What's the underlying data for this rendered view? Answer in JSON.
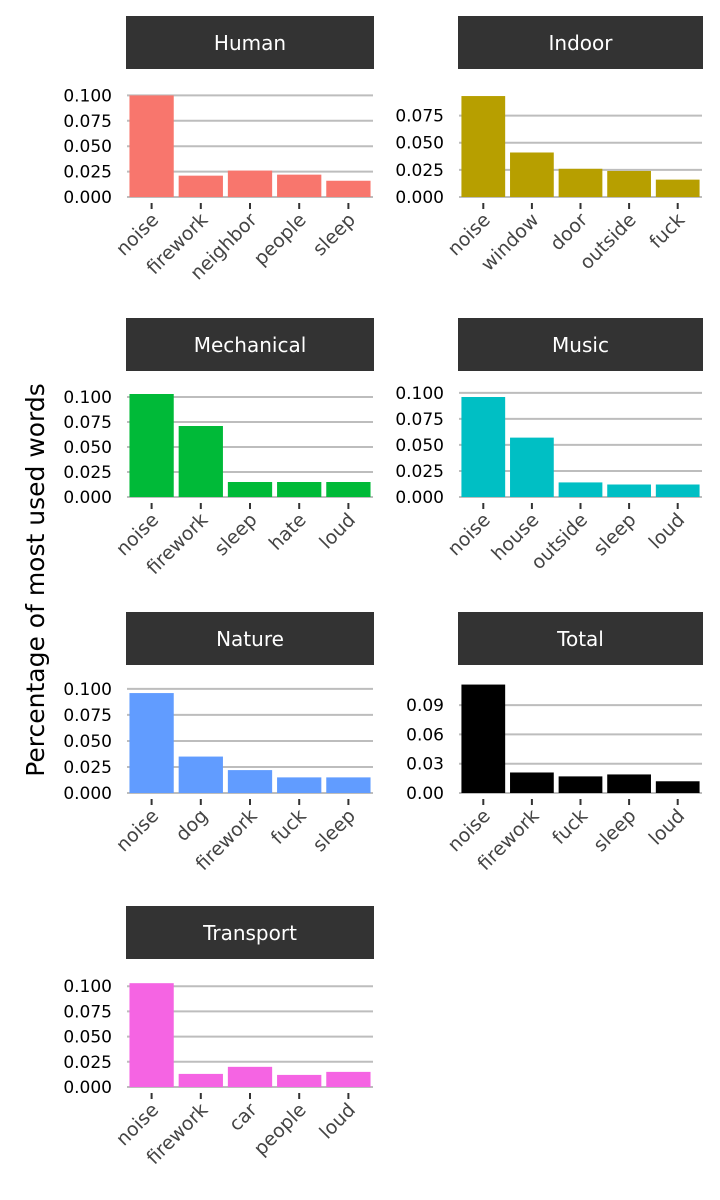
{
  "ylabel": "Percentage of most used words",
  "chart_data": [
    {
      "type": "bar",
      "title": "Human",
      "color": "#F8766D",
      "categories": [
        "noise",
        "firework",
        "neighbor",
        "people",
        "sleep"
      ],
      "values": [
        0.1,
        0.021,
        0.026,
        0.022,
        0.016
      ],
      "ylim": [
        0,
        0.125
      ],
      "yticks": [
        "0.000",
        "0.025",
        "0.050",
        "0.075",
        "0.100"
      ],
      "ytick_values": [
        0,
        0.025,
        0.05,
        0.075,
        0.1
      ]
    },
    {
      "type": "bar",
      "title": "Indoor",
      "color": "#B79F00",
      "categories": [
        "noise",
        "window",
        "door",
        "outside",
        "fuck"
      ],
      "values": [
        0.093,
        0.041,
        0.026,
        0.024,
        0.016
      ],
      "ylim": [
        0,
        0.117
      ],
      "yticks": [
        "0.000",
        "0.025",
        "0.050",
        "0.075"
      ],
      "ytick_values": [
        0,
        0.025,
        0.05,
        0.075
      ]
    },
    {
      "type": "bar",
      "title": "Mechanical",
      "color": "#00BA38",
      "categories": [
        "noise",
        "firework",
        "sleep",
        "hate",
        "loud"
      ],
      "values": [
        0.103,
        0.071,
        0.015,
        0.015,
        0.015
      ],
      "ylim": [
        0,
        0.125
      ],
      "yticks": [
        "0.000",
        "0.025",
        "0.050",
        "0.075",
        "0.100"
      ],
      "ytick_values": [
        0,
        0.025,
        0.05,
        0.075,
        0.1
      ]
    },
    {
      "type": "bar",
      "title": "Music",
      "color": "#00BFC4",
      "categories": [
        "noise",
        "house",
        "outside",
        "sleep",
        "loud"
      ],
      "values": [
        0.096,
        0.057,
        0.014,
        0.012,
        0.012
      ],
      "ylim": [
        0,
        0.12
      ],
      "yticks": [
        "0.000",
        "0.025",
        "0.050",
        "0.075",
        "0.100"
      ],
      "ytick_values": [
        0,
        0.025,
        0.05,
        0.075,
        0.1
      ]
    },
    {
      "type": "bar",
      "title": "Nature",
      "color": "#619CFF",
      "categories": [
        "noise",
        "dog",
        "firework",
        "fuck",
        "sleep"
      ],
      "values": [
        0.096,
        0.035,
        0.022,
        0.015,
        0.015
      ],
      "ylim": [
        0,
        0.122
      ],
      "yticks": [
        "0.000",
        "0.025",
        "0.050",
        "0.075",
        "0.100"
      ],
      "ytick_values": [
        0,
        0.025,
        0.05,
        0.075,
        0.1
      ]
    },
    {
      "type": "bar",
      "title": "Total",
      "color": "#000000",
      "categories": [
        "noise",
        "firework",
        "fuck",
        "sleep",
        "loud"
      ],
      "values": [
        0.111,
        0.021,
        0.017,
        0.019,
        0.012
      ],
      "ylim": [
        0,
        0.13
      ],
      "yticks": [
        "0.00",
        "0.03",
        "0.06",
        "0.09"
      ],
      "ytick_values": [
        0,
        0.03,
        0.06,
        0.09
      ]
    },
    {
      "type": "bar",
      "title": "Transport",
      "color": "#F564E3",
      "categories": [
        "noise",
        "firework",
        "car",
        "people",
        "loud"
      ],
      "values": [
        0.103,
        0.013,
        0.02,
        0.012,
        0.015
      ],
      "ylim": [
        0,
        0.126
      ],
      "yticks": [
        "0.000",
        "0.025",
        "0.050",
        "0.075",
        "0.100"
      ],
      "ytick_values": [
        0,
        0.025,
        0.05,
        0.075,
        0.1
      ]
    }
  ]
}
